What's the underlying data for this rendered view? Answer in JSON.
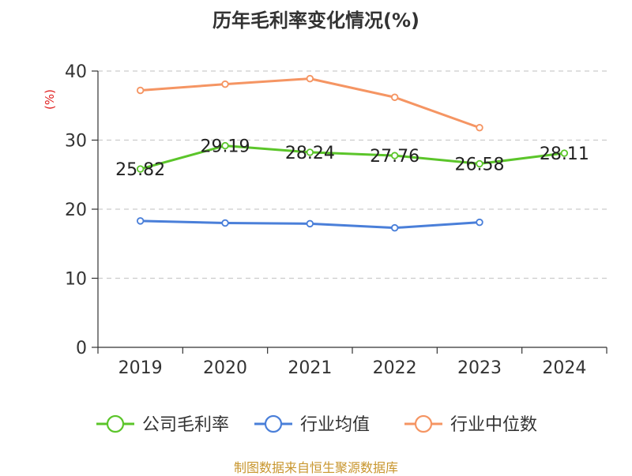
{
  "chart_data": {
    "type": "line",
    "title": "历年毛利率变化情况(%)",
    "ylabel": "(%)",
    "xlabel": "",
    "categories": [
      "2019",
      "2020",
      "2021",
      "2022",
      "2023",
      "2024"
    ],
    "ylim": [
      0,
      40
    ],
    "yticks": [
      0,
      10,
      20,
      30,
      40
    ],
    "grid": true,
    "legend_position": "bottom",
    "series": [
      {
        "name": "公司毛利率",
        "color": "#5bc52a",
        "values": [
          25.82,
          29.19,
          28.24,
          27.76,
          26.58,
          28.11
        ],
        "labels": [
          "25.82",
          "29.19",
          "28.24",
          "27.76",
          "26.58",
          "28.11"
        ]
      },
      {
        "name": "行业均值",
        "color": "#4a7fd9",
        "values": [
          18.3,
          18.0,
          17.9,
          17.3,
          18.1,
          null
        ]
      },
      {
        "name": "行业中位数",
        "color": "#f59563",
        "values": [
          37.2,
          38.1,
          38.9,
          36.2,
          31.8,
          null
        ]
      }
    ]
  },
  "source": "制图数据来自恒生聚源数据库"
}
